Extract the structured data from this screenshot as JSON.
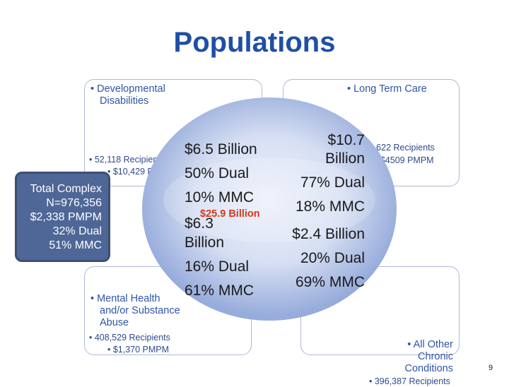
{
  "title": "Populations",
  "quadrants": {
    "top_left": {
      "label_line1": "• Developmental",
      "label_line2": "Disabilities",
      "recipients": "• 52,118 Recipients",
      "pmpm": "• $10,429 PMPM"
    },
    "top_right": {
      "label": "• Long Term Care",
      "recipients": "• 164,622 Recipients",
      "pmpm": "• $4509 PMPM"
    },
    "bottom_left": {
      "label_line1": "• Mental Health",
      "label_line2": "and/or Substance",
      "label_line3": "Abuse",
      "recipients": "• 408,529 Recipients",
      "pmpm": "• $1,370 PMPM"
    },
    "bottom_right": {
      "label_line1": "• All Other",
      "label_line2": "Chronic",
      "label_line3": "Conditions",
      "recipients": "• 396,387 Recipients"
    }
  },
  "circle": {
    "top_left": {
      "line1": "$6.5 Billion",
      "line2": "50% Dual",
      "line3": "10% MMC"
    },
    "top_right": {
      "line1": "$10.7",
      "line2": "Billion",
      "line3": "77% Dual",
      "line4": "18% MMC"
    },
    "bottom_left": {
      "line1": "$6.3",
      "line2": "Billion",
      "line3": "16% Dual",
      "line4": "61% MMC"
    },
    "bottom_right": {
      "line1": "$2.4 Billion",
      "line2": "20% Dual",
      "line3": "69% MMC"
    },
    "center_total": "$25.9 Billion"
  },
  "callout": {
    "line1": "Total Complex",
    "line2": "N=976,356",
    "line3": "$2,338 PMPM",
    "line4": "32% Dual",
    "line5": "51% MMC"
  },
  "page_number": "9",
  "colors": {
    "title": "#1f4fa6",
    "circle_outer": "#9fb3df",
    "circle_center": "#e9eefa",
    "callout_bg": "#4f6797",
    "center_total": "#d63a1a"
  }
}
